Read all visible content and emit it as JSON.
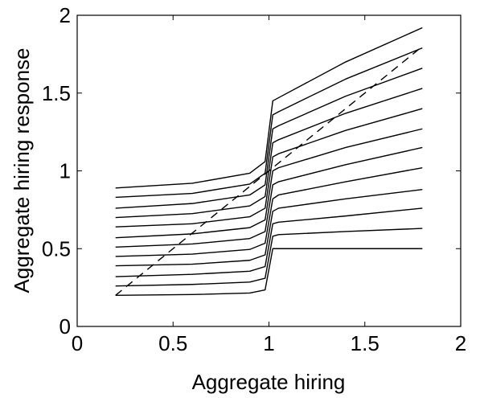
{
  "chart_data": {
    "type": "line",
    "title": "",
    "xlabel": "Aggregate hiring",
    "ylabel": "Aggregate hiring response",
    "xlim": [
      0,
      2
    ],
    "ylim": [
      0,
      2
    ],
    "xticks": [
      "0",
      "0.5",
      "1",
      "1.5",
      "2"
    ],
    "yticks": [
      "0",
      "0.5",
      "1",
      "1.5",
      "2"
    ],
    "grid": false,
    "legend": "none",
    "line_color": "#000000",
    "series": [
      {
        "style": "dashed",
        "x": [
          0.2,
          1.8
        ],
        "y": [
          0.2,
          1.8
        ]
      },
      {
        "style": "solid",
        "x": [
          0.2,
          0.6,
          0.9,
          0.98,
          1.02,
          1.05,
          1.4,
          1.8
        ],
        "y": [
          0.2,
          0.205,
          0.215,
          0.235,
          0.5,
          0.5,
          0.5,
          0.5
        ]
      },
      {
        "style": "solid",
        "x": [
          0.2,
          0.6,
          0.9,
          0.98,
          1.02,
          1.05,
          1.4,
          1.8
        ],
        "y": [
          0.26,
          0.27,
          0.285,
          0.31,
          0.58,
          0.59,
          0.61,
          0.63
        ]
      },
      {
        "style": "solid",
        "x": [
          0.2,
          0.6,
          0.9,
          0.98,
          1.02,
          1.05,
          1.4,
          1.8
        ],
        "y": [
          0.32,
          0.335,
          0.355,
          0.385,
          0.66,
          0.67,
          0.71,
          0.76
        ]
      },
      {
        "style": "solid",
        "x": [
          0.2,
          0.6,
          0.9,
          0.98,
          1.02,
          1.05,
          1.4,
          1.8
        ],
        "y": [
          0.39,
          0.4,
          0.425,
          0.46,
          0.74,
          0.76,
          0.82,
          0.88
        ]
      },
      {
        "style": "solid",
        "x": [
          0.2,
          0.6,
          0.9,
          0.98,
          1.02,
          1.05,
          1.4,
          1.8
        ],
        "y": [
          0.45,
          0.465,
          0.495,
          0.535,
          0.82,
          0.845,
          0.93,
          1.02
        ]
      },
      {
        "style": "solid",
        "x": [
          0.2,
          0.6,
          0.9,
          0.98,
          1.02,
          1.05,
          1.4,
          1.8
        ],
        "y": [
          0.51,
          0.53,
          0.565,
          0.61,
          0.91,
          0.93,
          1.04,
          1.15
        ]
      },
      {
        "style": "solid",
        "x": [
          0.2,
          0.6,
          0.9,
          0.98,
          1.02,
          1.05,
          1.4,
          1.8
        ],
        "y": [
          0.57,
          0.595,
          0.635,
          0.685,
          1.0,
          1.02,
          1.15,
          1.27
        ]
      },
      {
        "style": "solid",
        "x": [
          0.2,
          0.6,
          0.9,
          0.98,
          1.02,
          1.05,
          1.4,
          1.8
        ],
        "y": [
          0.64,
          0.66,
          0.705,
          0.76,
          1.09,
          1.11,
          1.26,
          1.4
        ]
      },
      {
        "style": "solid",
        "x": [
          0.2,
          0.6,
          0.9,
          0.98,
          1.02,
          1.05,
          1.4,
          1.8
        ],
        "y": [
          0.7,
          0.725,
          0.775,
          0.835,
          1.18,
          1.2,
          1.37,
          1.53
        ]
      },
      {
        "style": "solid",
        "x": [
          0.2,
          0.6,
          0.9,
          0.98,
          1.02,
          1.05,
          1.4,
          1.8
        ],
        "y": [
          0.76,
          0.79,
          0.845,
          0.91,
          1.27,
          1.29,
          1.48,
          1.66
        ]
      },
      {
        "style": "solid",
        "x": [
          0.2,
          0.6,
          0.9,
          0.98,
          1.02,
          1.05,
          1.4,
          1.8
        ],
        "y": [
          0.83,
          0.855,
          0.915,
          0.985,
          1.36,
          1.38,
          1.59,
          1.79
        ]
      },
      {
        "style": "solid",
        "x": [
          0.2,
          0.6,
          0.9,
          0.98,
          1.02,
          1.05,
          1.4,
          1.8
        ],
        "y": [
          0.89,
          0.92,
          0.985,
          1.06,
          1.45,
          1.47,
          1.7,
          1.92
        ]
      }
    ]
  }
}
